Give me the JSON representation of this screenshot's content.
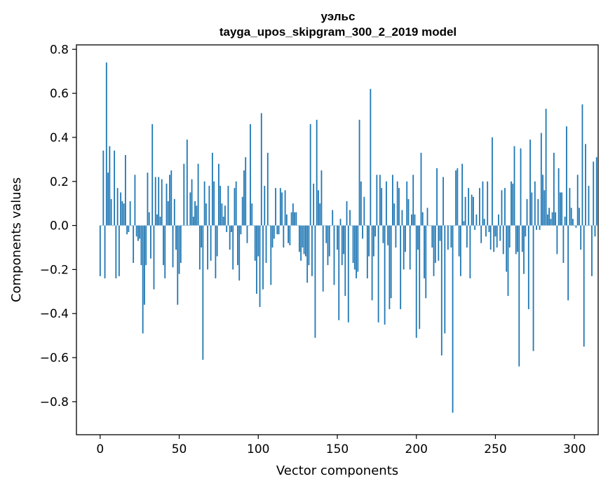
{
  "chart_data": {
    "type": "bar",
    "title": "уэльс",
    "subtitle": "tayga_upos_skipgram_300_2_2019 model",
    "xlabel": "Vector components",
    "ylabel": "Components values",
    "xlim": [
      -15,
      315
    ],
    "ylim": [
      -0.95,
      0.82
    ],
    "xticks": [
      0,
      50,
      100,
      150,
      200,
      250,
      300
    ],
    "xtick_labels": [
      "0",
      "50",
      "100",
      "150",
      "200",
      "250",
      "300"
    ],
    "yticks": [
      -0.8,
      -0.6,
      -0.4,
      -0.2,
      0.0,
      0.2,
      0.4,
      0.6,
      0.8
    ],
    "ytick_labels": [
      "−0.8",
      "−0.6",
      "−0.4",
      "−0.2",
      "0.0",
      "0.2",
      "0.4",
      "0.6",
      "0.8"
    ],
    "bar_color": "#1f77b4",
    "grid": false,
    "values": [
      -0.23,
      0.0,
      0.34,
      -0.24,
      0.74,
      0.24,
      0.36,
      0.12,
      0.0,
      0.34,
      -0.24,
      0.17,
      -0.23,
      0.15,
      0.11,
      0.1,
      0.32,
      -0.04,
      -0.03,
      0.11,
      0.0,
      -0.17,
      0.23,
      -0.05,
      -0.07,
      -0.06,
      -0.18,
      -0.49,
      -0.36,
      -0.18,
      0.24,
      0.06,
      -0.15,
      0.46,
      -0.29,
      0.22,
      0.05,
      0.22,
      0.04,
      0.21,
      -0.18,
      -0.24,
      0.19,
      0.11,
      0.23,
      0.25,
      -0.19,
      0.12,
      -0.11,
      -0.36,
      -0.22,
      -0.17,
      0.0,
      0.28,
      0.0,
      0.39,
      0.0,
      0.15,
      0.21,
      0.04,
      0.11,
      0.09,
      0.28,
      -0.2,
      -0.1,
      -0.61,
      0.2,
      0.1,
      -0.2,
      0.18,
      -0.16,
      0.33,
      0.2,
      -0.24,
      -0.14,
      0.28,
      0.18,
      0.1,
      0.04,
      0.09,
      -0.03,
      0.18,
      -0.11,
      -0.03,
      -0.2,
      0.17,
      0.2,
      -0.18,
      -0.25,
      -0.04,
      0.13,
      0.25,
      0.31,
      -0.08,
      0.0,
      0.46,
      0.1,
      0.0,
      -0.16,
      -0.31,
      -0.14,
      -0.37,
      0.51,
      -0.29,
      0.18,
      -0.17,
      0.33,
      0.0,
      -0.27,
      -0.1,
      -0.06,
      0.17,
      -0.04,
      -0.04,
      0.17,
      0.15,
      -0.1,
      0.16,
      0.05,
      -0.08,
      -0.09,
      0.06,
      0.1,
      0.06,
      0.06,
      0.0,
      -0.12,
      -0.16,
      -0.1,
      -0.13,
      -0.14,
      -0.26,
      -0.18,
      0.46,
      -0.23,
      0.19,
      -0.51,
      0.48,
      0.16,
      0.1,
      0.25,
      -0.3,
      0.0,
      -0.08,
      -0.18,
      -0.14,
      0.0,
      0.07,
      -0.27,
      0.0,
      -0.11,
      -0.43,
      0.03,
      -0.18,
      -0.13,
      -0.32,
      0.11,
      -0.44,
      0.07,
      0.0,
      -0.17,
      -0.2,
      -0.24,
      -0.21,
      0.48,
      0.2,
      -0.06,
      0.13,
      0.0,
      -0.24,
      -0.14,
      0.62,
      -0.34,
      -0.14,
      -0.05,
      0.23,
      -0.44,
      0.23,
      0.17,
      -0.08,
      -0.45,
      0.2,
      -0.09,
      -0.38,
      -0.33,
      0.23,
      0.1,
      -0.1,
      0.2,
      0.17,
      -0.38,
      0.07,
      -0.2,
      -0.12,
      0.2,
      0.12,
      -0.2,
      0.05,
      0.23,
      0.05,
      -0.51,
      -0.11,
      -0.47,
      0.33,
      0.06,
      -0.24,
      -0.33,
      0.08,
      0.0,
      0.0,
      -0.1,
      -0.23,
      -0.17,
      0.26,
      -0.16,
      -0.07,
      -0.59,
      0.22,
      -0.49,
      0.0,
      -0.11,
      0.0,
      -0.1,
      -0.85,
      0.0,
      0.25,
      0.26,
      -0.14,
      -0.23,
      0.28,
      0.02,
      0.13,
      -0.1,
      0.17,
      -0.24,
      0.14,
      0.13,
      -0.02,
      0.05,
      0.0,
      0.17,
      -0.08,
      0.2,
      0.03,
      -0.05,
      0.2,
      -0.03,
      -0.11,
      0.4,
      -0.12,
      -0.05,
      -0.1,
      0.05,
      -0.07,
      0.16,
      -0.13,
      0.17,
      -0.21,
      -0.32,
      -0.1,
      0.2,
      0.19,
      0.36,
      -0.13,
      -0.12,
      -0.64,
      0.35,
      -0.12,
      -0.22,
      -0.05,
      0.12,
      -0.38,
      0.39,
      0.15,
      -0.57,
      0.2,
      -0.02,
      0.12,
      -0.02,
      0.42,
      0.23,
      0.16,
      0.53,
      0.05,
      0.08,
      0.03,
      0.06,
      0.33,
      0.06,
      -0.13,
      0.26,
      0.15,
      0.15,
      -0.17,
      0.04,
      0.45,
      -0.34,
      0.17,
      0.08,
      0.03,
      0.0,
      -0.01,
      0.23,
      0.08,
      -0.11,
      0.55,
      -0.55,
      0.37,
      0.0,
      0.18,
      0.0,
      -0.23,
      0.29,
      -0.05,
      0.31
    ]
  }
}
